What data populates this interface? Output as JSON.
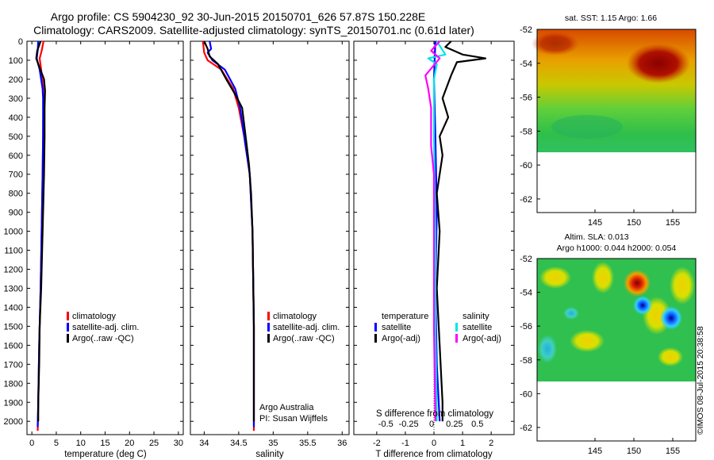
{
  "header": {
    "title_line1": "Argo profile: CS 5904230_92 30-Jun-2015 20150701_626 57.87S 150.228E",
    "title_line2": "Climatology: CARS2009. Satellite-adjusted climatology: synTS_20150701.nc (0.61d later)"
  },
  "colors": {
    "climatology": "#ff0000",
    "satellite_adj": "#0000ff",
    "argo": "#000000",
    "sat_salinity": "#00e5e5",
    "argo_salinity_adj": "#ff00ff"
  },
  "chart_data": [
    {
      "id": "temperature",
      "type": "line",
      "xlabel": "temperature (deg C)",
      "xlim": [
        -1,
        31
      ],
      "xticks": [
        "0",
        "5",
        "10",
        "15",
        "20",
        "25",
        "30"
      ],
      "ylim": [
        0,
        2070
      ],
      "yticks": [
        "0",
        "100",
        "200",
        "300",
        "400",
        "500",
        "600",
        "700",
        "800",
        "900",
        "1000",
        "1100",
        "1200",
        "1300",
        "1400",
        "1500",
        "1600",
        "1700",
        "1800",
        "1900",
        "2000"
      ],
      "legend": [
        "climatology",
        "satellite-adj. clim.",
        "Argo(..raw -QC)"
      ],
      "series": [
        {
          "name": "climatology",
          "color": "#ff0000",
          "points": [
            [
              2.4,
              0
            ],
            [
              2.0,
              50
            ],
            [
              1.6,
              90
            ],
            [
              1.9,
              150
            ],
            [
              2.3,
              250
            ],
            [
              2.4,
              300
            ],
            [
              2.3,
              500
            ],
            [
              2.2,
              700
            ],
            [
              2.0,
              1000
            ],
            [
              1.8,
              1300
            ],
            [
              1.5,
              1600
            ],
            [
              1.3,
              1900
            ],
            [
              1.2,
              2050
            ]
          ]
        },
        {
          "name": "satellite-adj. clim.",
          "color": "#0000ff",
          "points": [
            [
              1.3,
              0
            ],
            [
              1.2,
              50
            ],
            [
              1.0,
              90
            ],
            [
              1.6,
              150
            ],
            [
              2.2,
              250
            ],
            [
              2.3,
              300
            ],
            [
              2.3,
              500
            ],
            [
              2.2,
              700
            ],
            [
              2.0,
              1000
            ],
            [
              1.8,
              1300
            ],
            [
              1.5,
              1600
            ],
            [
              1.3,
              1900
            ],
            [
              1.2,
              2030
            ]
          ]
        },
        {
          "name": "Argo(..raw -QC)",
          "color": "#000000",
          "points": [
            [
              1.8,
              0
            ],
            [
              1.1,
              50
            ],
            [
              0.9,
              90
            ],
            [
              1.3,
              120
            ],
            [
              2.5,
              200
            ],
            [
              2.7,
              260
            ],
            [
              2.6,
              350
            ],
            [
              2.6,
              500
            ],
            [
              2.5,
              700
            ],
            [
              2.3,
              900
            ],
            [
              2.1,
              1100
            ],
            [
              1.9,
              1300
            ],
            [
              1.6,
              1500
            ],
            [
              1.5,
              1700
            ],
            [
              1.3,
              1900
            ],
            [
              1.3,
              2000
            ]
          ]
        }
      ]
    },
    {
      "id": "salinity",
      "type": "line",
      "xlabel": "salinity",
      "xlim": [
        33.8,
        36.1
      ],
      "xticks": [
        "34",
        "34.5",
        "35",
        "35.5",
        "36"
      ],
      "ylim": [
        0,
        2070
      ],
      "legend": [
        "climatology",
        "satellite-adj. clim.",
        "Argo(..raw -QC)"
      ],
      "annotation": [
        "Argo Australia",
        "PI: Susan Wijffels"
      ],
      "series": [
        {
          "name": "climatology",
          "color": "#ff0000",
          "points": [
            [
              33.98,
              0
            ],
            [
              34.0,
              60
            ],
            [
              34.05,
              100
            ],
            [
              34.25,
              150
            ],
            [
              34.42,
              250
            ],
            [
              34.5,
              350
            ],
            [
              34.58,
              500
            ],
            [
              34.66,
              700
            ],
            [
              34.7,
              1000
            ],
            [
              34.72,
              1500
            ],
            [
              34.72,
              2050
            ]
          ]
        },
        {
          "name": "satellite-adj. clim.",
          "color": "#0000ff",
          "points": [
            [
              34.08,
              0
            ],
            [
              34.1,
              40
            ],
            [
              34.05,
              60
            ],
            [
              34.12,
              100
            ],
            [
              34.3,
              150
            ],
            [
              34.45,
              250
            ],
            [
              34.52,
              350
            ],
            [
              34.58,
              500
            ],
            [
              34.66,
              700
            ],
            [
              34.7,
              1000
            ],
            [
              34.72,
              1500
            ],
            [
              34.72,
              2030
            ]
          ]
        },
        {
          "name": "Argo(..raw -QC)",
          "color": "#000000",
          "points": [
            [
              34.0,
              0
            ],
            [
              34.05,
              40
            ],
            [
              34.08,
              80
            ],
            [
              34.2,
              120
            ],
            [
              34.32,
              200
            ],
            [
              34.45,
              280
            ],
            [
              34.55,
              350
            ],
            [
              34.6,
              500
            ],
            [
              34.65,
              650
            ],
            [
              34.68,
              800
            ],
            [
              34.7,
              1000
            ],
            [
              34.72,
              1500
            ],
            [
              34.72,
              2000
            ]
          ]
        }
      ]
    },
    {
      "id": "difference",
      "type": "line",
      "xlabel": "T difference from climatology",
      "xlabel_top": "S difference from climatology",
      "xlim": [
        -2.8,
        2.8
      ],
      "xticks": [
        "-2",
        "-1",
        "0",
        "1",
        "2"
      ],
      "s_ticks": [
        "-0.5",
        "-0.25",
        "0",
        "0.25",
        "0.5"
      ],
      "ylim": [
        0,
        2070
      ],
      "legend": {
        "temperature_heading": "temperature",
        "salinity_heading": "salinity",
        "t_satellite": "satellite",
        "t_argo": "Argo(-adj)",
        "s_satellite": "satellite",
        "s_argo": "Argo(-adj)"
      },
      "series": [
        {
          "name": "T satellite",
          "color": "#0000ff",
          "points": [
            [
              0.05,
              0
            ],
            [
              0.0,
              200
            ],
            [
              0.05,
              500
            ],
            [
              0.1,
              900
            ],
            [
              0.05,
              1300
            ],
            [
              0.1,
              1700
            ],
            [
              0.2,
              2000
            ]
          ]
        },
        {
          "name": "T Argo(-adj)",
          "color": "#000000",
          "points": [
            [
              0.6,
              0
            ],
            [
              0.4,
              30
            ],
            [
              1.0,
              70
            ],
            [
              1.8,
              90
            ],
            [
              0.8,
              110
            ],
            [
              0.6,
              180
            ],
            [
              0.3,
              300
            ],
            [
              0.5,
              400
            ],
            [
              0.2,
              500
            ],
            [
              0.3,
              600
            ],
            [
              0.2,
              700
            ],
            [
              0.1,
              800
            ],
            [
              0.2,
              1000
            ],
            [
              0.1,
              1300
            ],
            [
              0.2,
              1600
            ],
            [
              0.3,
              1900
            ],
            [
              0.3,
              2000
            ]
          ]
        },
        {
          "name": "S satellite",
          "color": "#00e5e5",
          "points": [
            [
              0.1,
              0
            ],
            [
              0.4,
              70
            ],
            [
              -0.2,
              90
            ],
            [
              0.1,
              120
            ],
            [
              0.0,
              200
            ],
            [
              0.0,
              500
            ],
            [
              0.05,
              1000
            ],
            [
              0.05,
              1500
            ],
            [
              0.1,
              2000
            ]
          ]
        },
        {
          "name": "S Argo(-adj)",
          "color": "#ff00ff",
          "points": [
            [
              0.2,
              0
            ],
            [
              -0.1,
              50
            ],
            [
              0.2,
              90
            ],
            [
              -0.3,
              180
            ],
            [
              -0.2,
              250
            ],
            [
              -0.1,
              350
            ],
            [
              -0.1,
              550
            ],
            [
              0.0,
              700
            ],
            [
              0.0,
              1000
            ],
            [
              0.0,
              1500
            ],
            [
              0.05,
              2000
            ]
          ]
        }
      ]
    }
  ],
  "maps": [
    {
      "id": "sst-map",
      "title": "sat. SST: 1.15 Argo: 1.66",
      "yticks": [
        "-52",
        "-54",
        "-56",
        "-58",
        "-60",
        "-62"
      ],
      "xticks": [
        "145",
        "150",
        "155"
      ]
    },
    {
      "id": "sla-map",
      "title_line1": "Altim. SLA: 0.013",
      "title_line2": "Argo h1000: 0.044 h2000: 0.054",
      "yticks": [
        "-52",
        "-54",
        "-56",
        "-58",
        "-60",
        "-62"
      ],
      "xticks": [
        "145",
        "150",
        "155"
      ]
    }
  ],
  "credit": "©IMOS 08-Jul-2015 20:38:58"
}
